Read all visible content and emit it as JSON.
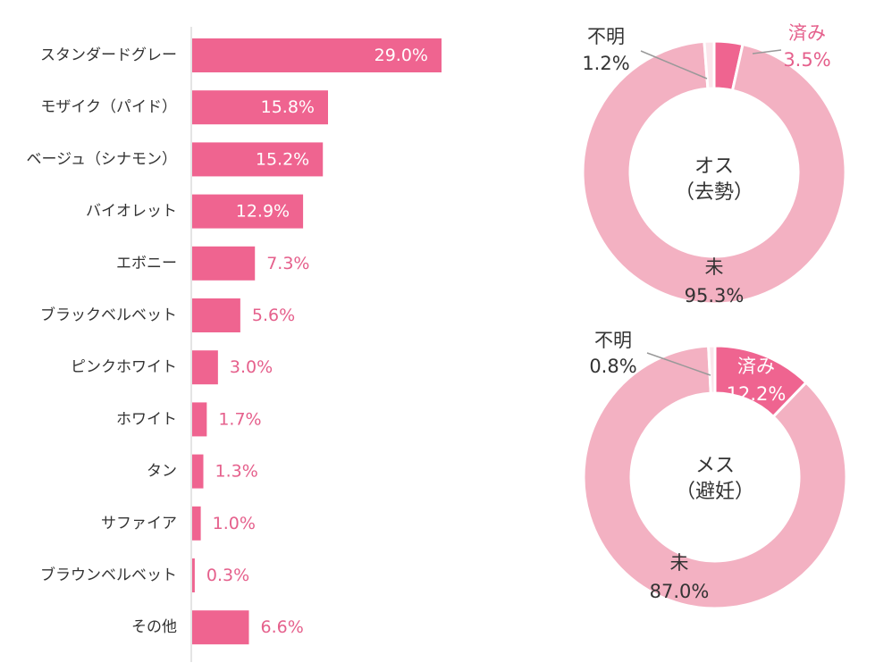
{
  "colors": {
    "bar": "#ef6490",
    "bar_label_inside": "#ffffff",
    "bar_label_outside": "#e5608c",
    "category_text": "#333333",
    "axis": "#c8c8c8",
    "donut_done": "#ef6490",
    "donut_not": "#f3b1c2",
    "donut_unknown": "#fbe6ec",
    "donut_text": "#333333",
    "donut_done_text_outside": "#e5608c"
  },
  "chart_data": [
    {
      "type": "bar",
      "orientation": "horizontal",
      "categories": [
        "スタンダードグレー",
        "モザイク（パイド）",
        "ベージュ（シナモン）",
        "バイオレット",
        "エボニー",
        "ブラックベルベット",
        "ピンクホワイト",
        "ホワイト",
        "タン",
        "サファイア",
        "ブラウンベルベット",
        "その他"
      ],
      "values": [
        29.0,
        15.8,
        15.2,
        12.9,
        7.3,
        5.6,
        3.0,
        1.7,
        1.3,
        1.0,
        0.3,
        6.6
      ],
      "value_labels": [
        "29.0%",
        "15.8%",
        "15.2%",
        "12.9%",
        "7.3%",
        "5.6%",
        "3.0%",
        "1.7%",
        "1.3%",
        "1.0%",
        "0.3%",
        "6.6%"
      ],
      "xlim": [
        0,
        30
      ]
    },
    {
      "type": "pie",
      "style": "donut",
      "center_label": [
        "オス",
        "（去勢）"
      ],
      "slices": [
        {
          "label": "済み",
          "value": 3.5,
          "value_label": "3.5%"
        },
        {
          "label": "未",
          "value": 95.3,
          "value_label": "95.3%"
        },
        {
          "label": "不明",
          "value": 1.2,
          "value_label": "1.2%"
        }
      ]
    },
    {
      "type": "pie",
      "style": "donut",
      "center_label": [
        "メス",
        "（避妊）"
      ],
      "slices": [
        {
          "label": "済み",
          "value": 12.2,
          "value_label": "12.2%"
        },
        {
          "label": "未",
          "value": 87.0,
          "value_label": "87.0%"
        },
        {
          "label": "不明",
          "value": 0.8,
          "value_label": "0.8%"
        }
      ]
    }
  ]
}
